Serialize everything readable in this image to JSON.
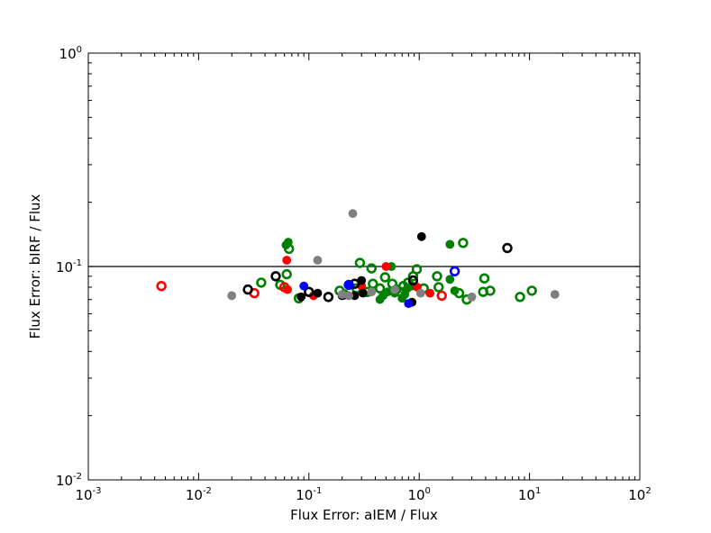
{
  "chart_data": {
    "type": "scatter",
    "title": "",
    "xlabel": "Flux Error: aIEM / Flux",
    "ylabel": "Flux Error: bIRF / Flux",
    "xscale": "log",
    "yscale": "log",
    "xlim": [
      0.001,
      100
    ],
    "ylim": [
      0.01,
      1
    ],
    "x_ticks": [
      {
        "base": "10",
        "exp": "-3",
        "value": 0.001
      },
      {
        "base": "10",
        "exp": "-2",
        "value": 0.01
      },
      {
        "base": "10",
        "exp": "-1",
        "value": 0.1
      },
      {
        "base": "10",
        "exp": "0",
        "value": 1
      },
      {
        "base": "10",
        "exp": "1",
        "value": 10
      },
      {
        "base": "10",
        "exp": "2",
        "value": 100
      }
    ],
    "y_ticks": [
      {
        "base": "10",
        "exp": "-2",
        "value": 0.01
      },
      {
        "base": "10",
        "exp": "-1",
        "value": 0.1
      },
      {
        "base": "10",
        "exp": "0",
        "value": 1
      }
    ],
    "reference_line_y": 0.1,
    "grid": false,
    "legend": "none",
    "series": [
      {
        "color": "#008000",
        "marker": "filled-circle",
        "points": [
          [
            0.065,
            0.13
          ],
          [
            0.062,
            0.126
          ],
          [
            0.56,
            0.1
          ],
          [
            0.44,
            0.07
          ],
          [
            0.47,
            0.073
          ],
          [
            0.52,
            0.076
          ],
          [
            0.7,
            0.071
          ],
          [
            0.74,
            0.074
          ],
          [
            0.78,
            0.079
          ],
          [
            0.86,
            0.081
          ],
          [
            1.9,
            0.127
          ],
          [
            1.9,
            0.087
          ],
          [
            2.1,
            0.077
          ],
          [
            0.6,
            0.075
          ]
        ]
      },
      {
        "color": "#008000",
        "marker": "open-circle",
        "points": [
          [
            0.066,
            0.121
          ],
          [
            0.063,
            0.092
          ],
          [
            0.037,
            0.084
          ],
          [
            0.055,
            0.082
          ],
          [
            0.081,
            0.071
          ],
          [
            0.19,
            0.077
          ],
          [
            0.21,
            0.074
          ],
          [
            0.29,
            0.104
          ],
          [
            0.37,
            0.098
          ],
          [
            0.34,
            0.076
          ],
          [
            0.38,
            0.083
          ],
          [
            0.44,
            0.079
          ],
          [
            0.49,
            0.089
          ],
          [
            0.57,
            0.083
          ],
          [
            0.62,
            0.078
          ],
          [
            0.68,
            0.076
          ],
          [
            0.72,
            0.081
          ],
          [
            0.79,
            0.084
          ],
          [
            0.88,
            0.09
          ],
          [
            0.95,
            0.097
          ],
          [
            1.1,
            0.079
          ],
          [
            1.45,
            0.09
          ],
          [
            1.5,
            0.08
          ],
          [
            2.3,
            0.075
          ],
          [
            2.5,
            0.129
          ],
          [
            2.7,
            0.07
          ],
          [
            3.9,
            0.088
          ],
          [
            3.8,
            0.076
          ],
          [
            4.4,
            0.077
          ],
          [
            8.2,
            0.072
          ],
          [
            10.5,
            0.077
          ],
          [
            0.27,
            0.079
          ]
        ]
      },
      {
        "color": "#ff0000",
        "marker": "filled-circle",
        "points": [
          [
            0.063,
            0.107
          ],
          [
            0.064,
            0.078
          ],
          [
            0.11,
            0.073
          ],
          [
            0.3,
            0.081
          ],
          [
            0.5,
            0.1
          ],
          [
            0.96,
            0.08
          ],
          [
            1.25,
            0.075
          ]
        ]
      },
      {
        "color": "#ff0000",
        "marker": "open-circle",
        "points": [
          [
            0.0046,
            0.081
          ],
          [
            0.032,
            0.075
          ],
          [
            0.06,
            0.08
          ],
          [
            1.6,
            0.073
          ]
        ]
      },
      {
        "color": "#000000",
        "marker": "filled-circle",
        "points": [
          [
            0.085,
            0.072
          ],
          [
            0.12,
            0.075
          ],
          [
            0.2,
            0.073
          ],
          [
            0.26,
            0.073
          ],
          [
            0.3,
            0.086
          ],
          [
            0.86,
            0.068
          ],
          [
            1.05,
            0.138
          ],
          [
            0.31,
            0.075
          ]
        ]
      },
      {
        "color": "#000000",
        "marker": "open-circle",
        "points": [
          [
            0.028,
            0.078
          ],
          [
            0.05,
            0.09
          ],
          [
            0.1,
            0.076
          ],
          [
            0.15,
            0.072
          ],
          [
            0.26,
            0.083
          ],
          [
            0.88,
            0.086
          ],
          [
            6.3,
            0.122
          ]
        ]
      },
      {
        "color": "#0000ff",
        "marker": "filled-circle",
        "points": [
          [
            0.09,
            0.081
          ],
          [
            0.23,
            0.082
          ],
          [
            0.8,
            0.067
          ]
        ]
      },
      {
        "color": "#0000ff",
        "marker": "open-circle",
        "points": [
          [
            0.23,
            0.082
          ],
          [
            2.1,
            0.095
          ]
        ]
      },
      {
        "color": "#808080",
        "marker": "filled-circle",
        "points": [
          [
            0.02,
            0.073
          ],
          [
            0.12,
            0.107
          ],
          [
            0.25,
            0.177
          ],
          [
            0.2,
            0.074
          ],
          [
            0.23,
            0.073
          ],
          [
            0.37,
            0.076
          ],
          [
            0.6,
            0.078
          ],
          [
            1.03,
            0.075
          ],
          [
            3.0,
            0.072
          ],
          [
            17.0,
            0.074
          ]
        ]
      }
    ]
  }
}
